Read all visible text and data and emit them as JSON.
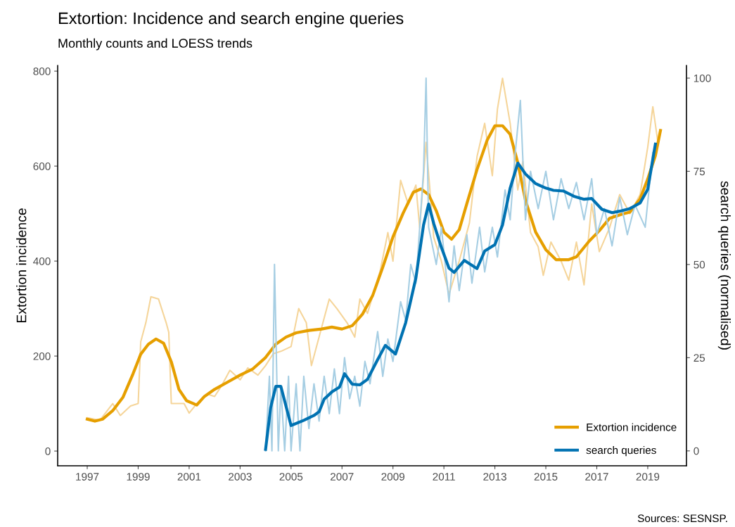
{
  "chart_data": {
    "type": "line",
    "title": "Extortion: Incidence and search engine queries",
    "subtitle": "Monthly counts and LOESS trends",
    "ylabel": "Extortion incidence",
    "y2label": "search queries (normalised)",
    "annotations": [
      "Sources: SESNSP."
    ],
    "xlim": [
      1995.84,
      2020.52
    ],
    "xticks": [
      1997,
      1999,
      2001,
      2003,
      2005,
      2007,
      2009,
      2011,
      2013,
      2015,
      2017,
      2019
    ],
    "ylim": [
      -31,
      812
    ],
    "yticks": [
      0,
      200,
      400,
      600,
      800
    ],
    "y2lim": [
      -4,
      103.4
    ],
    "y2ticks": [
      0,
      25,
      50,
      75,
      100
    ],
    "grid": false,
    "legend": "bottom right",
    "line_style": "solid",
    "marker": "none",
    "series": [
      {
        "color": "#f5d59a",
        "x": [
          1997.0,
          1997.5,
          1998.0,
          1998.3,
          1998.7,
          1999.0,
          1999.1,
          1999.3,
          1999.5,
          1999.8,
          2000.1,
          2000.2,
          2000.3,
          2000.8,
          2001.0,
          2001.3,
          2001.7,
          2002.0,
          2002.3,
          2002.6,
          2003.0,
          2003.3,
          2003.7,
          2004.0,
          2004.3,
          2004.6,
          2005.0,
          2005.3,
          2005.6,
          2005.8,
          2006.1,
          2006.5,
          2006.8,
          2007.2,
          2007.5,
          2007.7,
          2008.0,
          2008.5,
          2008.8,
          2009.0,
          2009.3,
          2009.6,
          2009.9,
          2010.05,
          2010.3,
          2010.6,
          2010.9,
          2011.2,
          2011.6,
          2012.0,
          2012.3,
          2012.6,
          2012.9,
          2013.1,
          2013.3,
          2013.6,
          2013.9,
          2014.1,
          2014.4,
          2014.7,
          2014.9,
          2015.2,
          2015.6,
          2015.9,
          2016.2,
          2016.5,
          2016.8,
          2017.1,
          2017.5,
          2017.9,
          2018.3,
          2018.7,
          2019.0,
          2019.2,
          2019.4
        ],
        "values": [
          70,
          65,
          100,
          75,
          95,
          100,
          230,
          270,
          325,
          320,
          270,
          250,
          100,
          100,
          80,
          100,
          120,
          115,
          140,
          170,
          150,
          175,
          160,
          180,
          205,
          210,
          220,
          300,
          270,
          180,
          240,
          320,
          300,
          270,
          240,
          320,
          290,
          380,
          460,
          400,
          570,
          520,
          560,
          470,
          650,
          450,
          400,
          330,
          400,
          480,
          620,
          690,
          580,
          720,
          785,
          690,
          550,
          610,
          460,
          430,
          370,
          440,
          400,
          360,
          440,
          350,
          520,
          420,
          470,
          540,
          500,
          540,
          640,
          725,
          650
        ]
      },
      {
        "color": "#a6cee3",
        "axis": "y2",
        "x": [
          2004.0,
          2004.15,
          2004.25,
          2004.35,
          2004.5,
          2004.6,
          2004.75,
          2004.9,
          2005.0,
          2005.2,
          2005.35,
          2005.5,
          2005.7,
          2005.9,
          2006.1,
          2006.3,
          2006.5,
          2006.7,
          2006.9,
          2007.1,
          2007.3,
          2007.5,
          2007.7,
          2007.9,
          2008.1,
          2008.4,
          2008.6,
          2008.8,
          2009.0,
          2009.3,
          2009.5,
          2009.7,
          2009.9,
          2010.1,
          2010.2,
          2010.3,
          2010.4,
          2010.7,
          2010.9,
          2011.2,
          2011.4,
          2011.6,
          2011.9,
          2012.1,
          2012.4,
          2012.6,
          2012.9,
          2013.1,
          2013.4,
          2013.6,
          2013.8,
          2014.0,
          2014.2,
          2014.4,
          2014.7,
          2015.0,
          2015.3,
          2015.6,
          2015.9,
          2016.2,
          2016.5,
          2016.8,
          2017.0,
          2017.3,
          2017.6,
          2017.9,
          2018.2,
          2018.5,
          2018.9,
          2019.2
        ],
        "values": [
          0,
          20,
          0,
          50,
          0,
          17,
          0,
          20,
          0,
          18,
          0,
          20,
          6,
          18,
          8,
          20,
          10,
          22,
          10,
          25,
          14,
          20,
          12,
          24,
          18,
          32,
          20,
          30,
          24,
          40,
          35,
          50,
          45,
          65,
          75,
          100,
          60,
          50,
          60,
          40,
          55,
          43,
          58,
          45,
          60,
          48,
          60,
          52,
          70,
          62,
          80,
          94,
          62,
          75,
          65,
          75,
          62,
          73,
          65,
          72,
          62,
          73,
          58,
          65,
          55,
          68,
          58,
          66,
          60,
          80
        ]
      },
      {
        "name": "Extortion incidence",
        "color": "#e69f00",
        "x": [
          1997.0,
          1997.3,
          1997.6,
          1998.0,
          1998.4,
          1998.8,
          1999.1,
          1999.4,
          1999.7,
          2000.0,
          2000.3,
          2000.6,
          2000.9,
          2001.3,
          2001.6,
          2002.0,
          2002.5,
          2003.0,
          2003.5,
          2004.0,
          2004.4,
          2004.8,
          2005.2,
          2005.7,
          2006.2,
          2006.6,
          2007.0,
          2007.4,
          2007.8,
          2008.2,
          2008.6,
          2009.0,
          2009.4,
          2009.8,
          2010.1,
          2010.4,
          2010.7,
          2011.0,
          2011.3,
          2011.6,
          2011.9,
          2012.3,
          2012.7,
          2013.0,
          2013.3,
          2013.6,
          2013.9,
          2014.2,
          2014.6,
          2015.0,
          2015.4,
          2015.9,
          2016.2,
          2016.7,
          2017.1,
          2017.5,
          2018.0,
          2018.3,
          2018.7,
          2019.0,
          2019.3,
          2019.5
        ],
        "values": [
          67,
          63,
          67,
          85,
          113,
          163,
          204,
          225,
          236,
          227,
          188,
          130,
          106,
          97,
          115,
          130,
          145,
          160,
          173,
          197,
          225,
          240,
          249,
          254,
          257,
          261,
          257,
          264,
          288,
          327,
          387,
          451,
          501,
          545,
          552,
          540,
          506,
          461,
          446,
          466,
          521,
          593,
          655,
          685,
          685,
          667,
          607,
          528,
          461,
          424,
          403,
          403,
          409,
          442,
          464,
          490,
          499,
          503,
          531,
          573,
          622,
          675
        ]
      },
      {
        "name": "search queries",
        "color": "#0072b2",
        "axis": "y2",
        "x": [
          2004.0,
          2004.2,
          2004.4,
          2004.6,
          2005.0,
          2005.5,
          2005.9,
          2006.1,
          2006.3,
          2006.6,
          2006.9,
          2007.1,
          2007.4,
          2007.7,
          2008.0,
          2008.4,
          2008.7,
          2009.1,
          2009.5,
          2009.9,
          2010.2,
          2010.4,
          2010.6,
          2010.9,
          2011.2,
          2011.4,
          2011.8,
          2012.0,
          2012.3,
          2012.6,
          2013.0,
          2013.3,
          2013.6,
          2013.9,
          2014.2,
          2014.6,
          2015.0,
          2015.3,
          2015.7,
          2016.1,
          2016.5,
          2016.8,
          2017.2,
          2017.6,
          2017.9,
          2018.3,
          2018.7,
          2019.0,
          2019.3
        ],
        "values": [
          0.4,
          11.6,
          17.3,
          17.3,
          6.8,
          8.2,
          9.5,
          10.5,
          13.9,
          15.8,
          17.1,
          20.7,
          17.9,
          17.7,
          19.2,
          24.5,
          28.3,
          26.0,
          34.4,
          46.4,
          60.6,
          66.2,
          61.0,
          54.6,
          49.0,
          47.9,
          51.1,
          50.2,
          48.9,
          53.6,
          55.3,
          60.6,
          70.5,
          77.2,
          74.3,
          71.7,
          70.5,
          69.9,
          69.7,
          68.3,
          67.5,
          67.7,
          64.8,
          63.9,
          64.3,
          65.0,
          66.5,
          70.2,
          82.3
        ]
      }
    ]
  }
}
